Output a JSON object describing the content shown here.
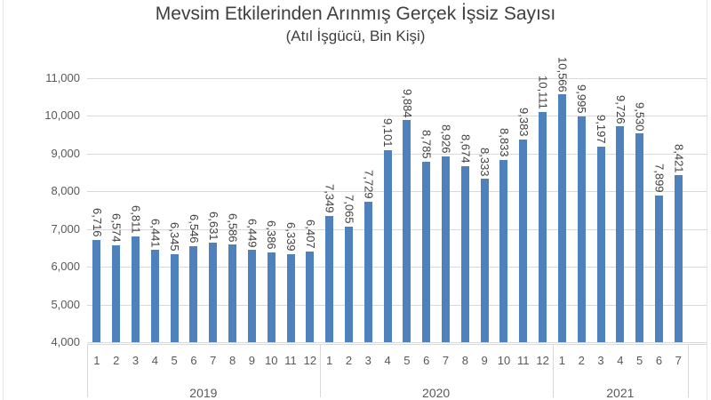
{
  "chart_data": {
    "type": "bar",
    "title": "Mevsim Etkilerinden Arınmış Gerçek İşsiz Sayısı",
    "subtitle": "(Atıl İşgücü, Bin Kişi)",
    "xlabel": "",
    "ylabel": "",
    "ylim": [
      4000,
      11000
    ],
    "ytick_interval": 1000,
    "ytick_labels": [
      "11,000",
      "10,000",
      "9,000",
      "8,000",
      "7,000",
      "6,000",
      "5,000",
      "4,000"
    ],
    "grid": true,
    "legend": "none",
    "value_label_rotation": "rotated-90-clockwise",
    "colors": {
      "bar": "#4f81bd",
      "gridline": "#d9d9d9",
      "axis_text": "#595959",
      "value_label_text": "#404040",
      "title_text": "#3f3f3f"
    },
    "groups": [
      {
        "year": "2019",
        "categories": [
          "1",
          "2",
          "3",
          "4",
          "5",
          "6",
          "7",
          "8",
          "9",
          "10",
          "11",
          "12"
        ],
        "values": [
          6716,
          6574,
          6811,
          6441,
          6345,
          6546,
          6631,
          6586,
          6449,
          6386,
          6339,
          6407
        ],
        "value_labels": [
          "6,716",
          "6,574",
          "6,811",
          "6,441",
          "6,345",
          "6,546",
          "6,631",
          "6,586",
          "6,449",
          "6,386",
          "6,339",
          "6,407"
        ]
      },
      {
        "year": "2020",
        "categories": [
          "1",
          "2",
          "3",
          "4",
          "5",
          "6",
          "7",
          "8",
          "9",
          "10",
          "11",
          "12"
        ],
        "values": [
          7349,
          7065,
          7729,
          9101,
          9884,
          8785,
          8926,
          8674,
          8333,
          8833,
          9383,
          10111
        ],
        "value_labels": [
          "7,349",
          "7,065",
          "7,729",
          "9,101",
          "9,884",
          "8,785",
          "8,926",
          "8,674",
          "8,333",
          "8,833",
          "9,383",
          "10,111"
        ]
      },
      {
        "year": "2021",
        "categories": [
          "1",
          "2",
          "3",
          "4",
          "5",
          "6",
          "7"
        ],
        "values": [
          10566,
          9995,
          9197,
          9726,
          9530,
          7899,
          8421
        ],
        "value_labels": [
          "10,566",
          "9,995",
          "9,197",
          "9,726",
          "9,530",
          "7,899",
          "8,421"
        ]
      }
    ],
    "trailing_empty_slots": 1
  }
}
